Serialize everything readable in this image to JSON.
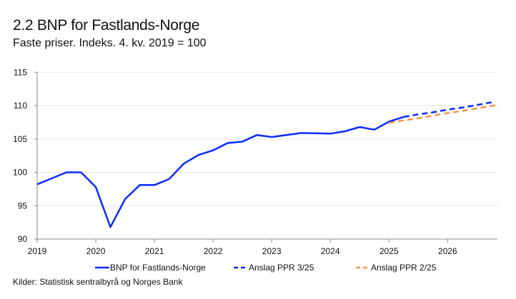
{
  "title": "2.2 BNP for Fastlands-Norge",
  "subtitle": "Faste priser. Indeks. 4. kv. 2019 = 100",
  "source": "Kilder: Statistisk sentralbyrå og Norges Bank",
  "chart_data": {
    "type": "line",
    "title": "2.2 BNP for Fastlands-Norge",
    "subtitle": "Faste priser. Indeks. 4. kv. 2019 = 100",
    "xlim": [
      2019,
      2026.85
    ],
    "ylim": [
      90,
      115
    ],
    "yticks": [
      90,
      95,
      100,
      105,
      110,
      115
    ],
    "xticks": [
      2019,
      2020,
      2021,
      2022,
      2023,
      2024,
      2025,
      2026
    ],
    "grid": "horizontal",
    "legend_position": "bottom",
    "series": [
      {
        "name": "BNP for Fastlands-Norge",
        "color": "#0a2cff",
        "style": "solid",
        "x": [
          2019,
          2019.25,
          2019.5,
          2019.75,
          2020,
          2020.25,
          2020.5,
          2020.75,
          2021,
          2021.25,
          2021.5,
          2021.75,
          2022,
          2022.25,
          2022.5,
          2022.75,
          2023,
          2023.25,
          2023.5,
          2023.75,
          2024,
          2024.25,
          2024.5,
          2024.75,
          2025,
          2025.25
        ],
        "y": [
          98.2,
          99.1,
          100.0,
          100.0,
          97.8,
          91.8,
          96.0,
          98.1,
          98.1,
          99.0,
          101.3,
          102.6,
          103.3,
          104.4,
          104.6,
          105.6,
          105.3,
          105.6,
          105.9,
          105.85,
          105.8,
          106.15,
          106.8,
          106.4,
          107.6,
          108.3
        ]
      },
      {
        "name": "Anslag PPR 3/25",
        "color": "#0a2cff",
        "style": "dashed",
        "x": [
          2025.25,
          2025.5,
          2025.75,
          2026,
          2026.25,
          2026.5,
          2026.75
        ],
        "y": [
          108.3,
          108.7,
          109.0,
          109.4,
          109.7,
          110.1,
          110.5
        ]
      },
      {
        "name": "Anslag PPR 2/25",
        "color": "#f5954a",
        "style": "dashed",
        "x": [
          2025,
          2025.25,
          2025.5,
          2025.75,
          2026,
          2026.25,
          2026.5,
          2026.85
        ],
        "y": [
          107.4,
          107.8,
          108.1,
          108.5,
          108.9,
          109.2,
          109.6,
          110.1
        ]
      }
    ]
  }
}
